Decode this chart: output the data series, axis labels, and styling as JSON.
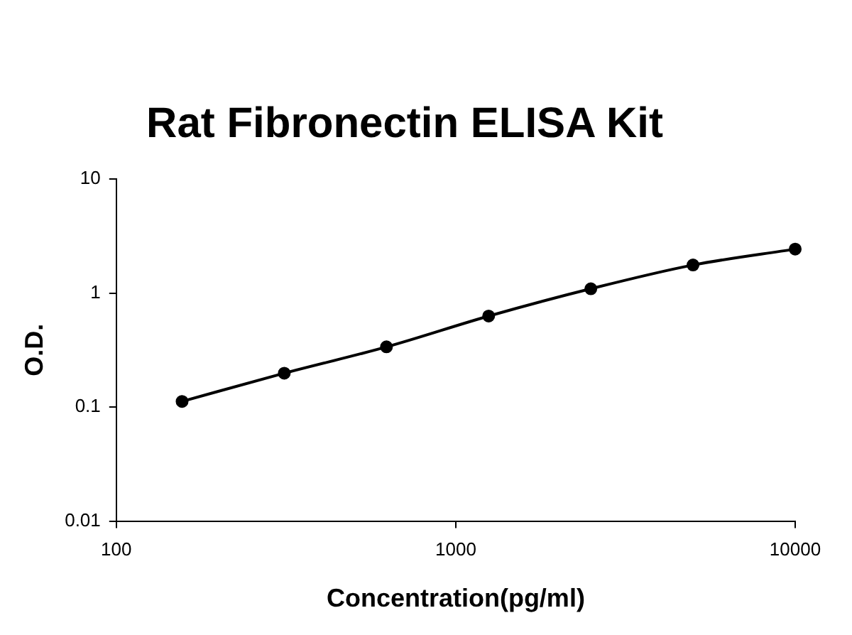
{
  "chart_data": {
    "type": "line",
    "title": "Rat Fibronectin ELISA Kit",
    "xlabel": "Concentration(pg/ml)",
    "ylabel": "O.D.",
    "x": [
      156.25,
      312.5,
      625,
      1250,
      2500,
      5000,
      10000
    ],
    "series": [
      {
        "color": "#000000",
        "values": [
          0.112,
          0.198,
          0.337,
          0.628,
          1.09,
          1.76,
          2.43
        ]
      }
    ],
    "log": "xy",
    "xlim": [
      100,
      10000
    ],
    "ylim": [
      0.01,
      10
    ],
    "xticks": [
      100,
      1000,
      10000
    ],
    "yticks": [
      0.01,
      0.1,
      1,
      10
    ],
    "grid": false,
    "legend": false,
    "marker": "circle",
    "line_style": "solid"
  }
}
